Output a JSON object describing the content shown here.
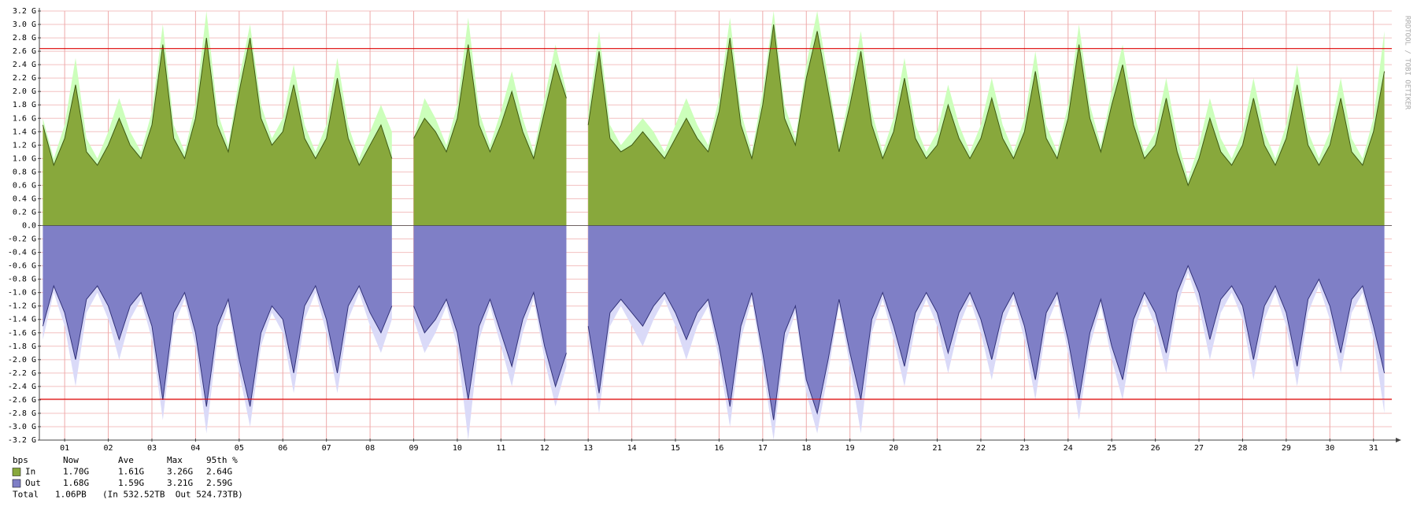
{
  "chart_data": {
    "type": "area",
    "watermark": "RRDTOOL / TOBI OETIKER",
    "xlim": [
      0.92,
      31.92
    ],
    "xticks": [
      {
        "value": 1.5,
        "label": "01"
      },
      {
        "value": 2.5,
        "label": "02"
      },
      {
        "value": 3.5,
        "label": "03"
      },
      {
        "value": 4.5,
        "label": "04"
      },
      {
        "value": 5.5,
        "label": "05"
      },
      {
        "value": 6.5,
        "label": "06"
      },
      {
        "value": 7.5,
        "label": "07"
      },
      {
        "value": 8.5,
        "label": "08"
      },
      {
        "value": 9.5,
        "label": "09"
      },
      {
        "value": 10.5,
        "label": "10"
      },
      {
        "value": 11.5,
        "label": "11"
      },
      {
        "value": 12.5,
        "label": "12"
      },
      {
        "value": 13.5,
        "label": "13"
      },
      {
        "value": 14.5,
        "label": "14"
      },
      {
        "value": 15.5,
        "label": "15"
      },
      {
        "value": 16.5,
        "label": "16"
      },
      {
        "value": 17.5,
        "label": "17"
      },
      {
        "value": 18.5,
        "label": "18"
      },
      {
        "value": 19.5,
        "label": "19"
      },
      {
        "value": 20.5,
        "label": "20"
      },
      {
        "value": 21.5,
        "label": "21"
      },
      {
        "value": 22.5,
        "label": "22"
      },
      {
        "value": 23.5,
        "label": "23"
      },
      {
        "value": 24.5,
        "label": "24"
      },
      {
        "value": 25.5,
        "label": "25"
      },
      {
        "value": 26.5,
        "label": "26"
      },
      {
        "value": 27.5,
        "label": "27"
      },
      {
        "value": 28.5,
        "label": "28"
      },
      {
        "value": 29.5,
        "label": "29"
      },
      {
        "value": 30.5,
        "label": "30"
      },
      {
        "value": 31.5,
        "label": "31"
      }
    ],
    "ylim": [
      -3.2,
      3.2
    ],
    "yticks": [
      {
        "value": 3.2,
        "label": "3.2 G"
      },
      {
        "value": 3.0,
        "label": "3.0 G"
      },
      {
        "value": 2.8,
        "label": "2.8 G"
      },
      {
        "value": 2.6,
        "label": "2.6 G"
      },
      {
        "value": 2.4,
        "label": "2.4 G"
      },
      {
        "value": 2.2,
        "label": "2.2 G"
      },
      {
        "value": 2.0,
        "label": "2.0 G"
      },
      {
        "value": 1.8,
        "label": "1.8 G"
      },
      {
        "value": 1.6,
        "label": "1.6 G"
      },
      {
        "value": 1.4,
        "label": "1.4 G"
      },
      {
        "value": 1.2,
        "label": "1.2 G"
      },
      {
        "value": 1.0,
        "label": "1.0 G"
      },
      {
        "value": 0.8,
        "label": "0.8 G"
      },
      {
        "value": 0.6,
        "label": "0.6 G"
      },
      {
        "value": 0.4,
        "label": "0.4 G"
      },
      {
        "value": 0.2,
        "label": "0.2 G"
      },
      {
        "value": 0,
        "label": "0.0"
      },
      {
        "value": -0.2,
        "label": "-0.2 G"
      },
      {
        "value": -0.4,
        "label": "-0.4 G"
      },
      {
        "value": -0.6,
        "label": "-0.6 G"
      },
      {
        "value": -0.8,
        "label": "-0.8 G"
      },
      {
        "value": -1.0,
        "label": "-1.0 G"
      },
      {
        "value": -1.2,
        "label": "-1.2 G"
      },
      {
        "value": -1.4,
        "label": "-1.4 G"
      },
      {
        "value": -1.6,
        "label": "-1.6 G"
      },
      {
        "value": -1.8,
        "label": "-1.8 G"
      },
      {
        "value": -2.0,
        "label": "-2.0 G"
      },
      {
        "value": -2.2,
        "label": "-2.2 G"
      },
      {
        "value": -2.4,
        "label": "-2.4 G"
      },
      {
        "value": -2.6,
        "label": "-2.6 G"
      },
      {
        "value": -2.8,
        "label": "-2.8 G"
      },
      {
        "value": -3.0,
        "label": "-3.0 G"
      },
      {
        "value": -3.2,
        "label": "-3.2 G"
      }
    ],
    "grid": true,
    "hrules": [
      2.64,
      -2.59
    ],
    "x": [
      1,
      1.25,
      1.5,
      1.75,
      2,
      2.25,
      2.5,
      2.75,
      3,
      3.25,
      3.5,
      3.75,
      4,
      4.25,
      4.5,
      4.75,
      5,
      5.25,
      5.5,
      5.75,
      6,
      6.25,
      6.5,
      6.75,
      7,
      7.25,
      7.5,
      7.75,
      8,
      8.25,
      8.5,
      8.75,
      9,
      9.25,
      9.5,
      9.75,
      10,
      10.25,
      10.5,
      10.75,
      11,
      11.25,
      11.5,
      11.75,
      12,
      12.25,
      12.5,
      12.75,
      13,
      13.25,
      13.5,
      13.75,
      14,
      14.25,
      14.5,
      14.75,
      15,
      15.25,
      15.5,
      15.75,
      16,
      16.25,
      16.5,
      16.75,
      17,
      17.25,
      17.5,
      17.75,
      18,
      18.25,
      18.5,
      18.75,
      19,
      19.25,
      19.5,
      19.75,
      20,
      20.25,
      20.5,
      20.75,
      21,
      21.25,
      21.5,
      21.75,
      22,
      22.25,
      22.5,
      22.75,
      23,
      23.25,
      23.5,
      23.75,
      24,
      24.25,
      24.5,
      24.75,
      25,
      25.25,
      25.5,
      25.75,
      26,
      26.25,
      26.5,
      26.75,
      27,
      27.25,
      27.5,
      27.75,
      28,
      28.25,
      28.5,
      28.75,
      29,
      29.25,
      29.5,
      29.75,
      30,
      30.25,
      30.5,
      30.75,
      31,
      31.25,
      31.5,
      31.75
    ],
    "series": [
      {
        "name": "In",
        "color": "#88a83c",
        "line_color": "#3f5a14",
        "max_color": "#ccffbb",
        "values": [
          1.5,
          0.9,
          1.3,
          2.1,
          1.1,
          0.9,
          1.2,
          1.6,
          1.2,
          1.0,
          1.5,
          2.7,
          1.3,
          1.0,
          1.6,
          2.8,
          1.5,
          1.1,
          2.0,
          2.8,
          1.6,
          1.2,
          1.4,
          2.1,
          1.3,
          1.0,
          1.3,
          2.2,
          1.3,
          0.9,
          1.2,
          1.5,
          1.0,
          null,
          1.3,
          1.6,
          1.4,
          1.1,
          1.6,
          2.7,
          1.5,
          1.1,
          1.5,
          2.0,
          1.4,
          1.0,
          1.7,
          2.4,
          1.9,
          null,
          1.5,
          2.6,
          1.3,
          1.1,
          1.2,
          1.4,
          1.2,
          1.0,
          1.3,
          1.6,
          1.3,
          1.1,
          1.7,
          2.8,
          1.5,
          1.0,
          1.8,
          3.0,
          1.6,
          1.2,
          2.2,
          2.9,
          2.0,
          1.1,
          1.8,
          2.6,
          1.5,
          1.0,
          1.4,
          2.2,
          1.3,
          1.0,
          1.2,
          1.8,
          1.3,
          1.0,
          1.3,
          1.9,
          1.3,
          1.0,
          1.4,
          2.3,
          1.3,
          1.0,
          1.6,
          2.7,
          1.6,
          1.1,
          1.8,
          2.4,
          1.5,
          1.0,
          1.2,
          1.9,
          1.1,
          0.6,
          1.0,
          1.6,
          1.1,
          0.9,
          1.2,
          1.9,
          1.2,
          0.9,
          1.3,
          2.1,
          1.2,
          0.9,
          1.2,
          1.9,
          1.1,
          0.9,
          1.4,
          2.3
        ],
        "max_values": [
          1.6,
          1.0,
          1.5,
          2.5,
          1.3,
          1.0,
          1.4,
          1.9,
          1.4,
          1.1,
          1.7,
          3.0,
          1.5,
          1.1,
          1.8,
          3.2,
          1.7,
          1.2,
          2.2,
          3.0,
          1.8,
          1.3,
          1.6,
          2.4,
          1.5,
          1.1,
          1.5,
          2.5,
          1.5,
          1.0,
          1.4,
          1.8,
          1.4,
          null,
          1.3,
          1.9,
          1.6,
          1.2,
          1.8,
          3.1,
          1.7,
          1.2,
          1.7,
          2.3,
          1.6,
          1.1,
          1.9,
          2.7,
          2.0,
          null,
          1.7,
          2.9,
          1.5,
          1.2,
          1.4,
          1.6,
          1.4,
          1.1,
          1.5,
          1.9,
          1.5,
          1.2,
          1.9,
          3.1,
          1.7,
          1.1,
          2.0,
          3.2,
          1.8,
          1.3,
          2.4,
          3.2,
          2.2,
          1.2,
          2.0,
          2.9,
          1.7,
          1.1,
          1.6,
          2.5,
          1.5,
          1.1,
          1.4,
          2.1,
          1.5,
          1.1,
          1.5,
          2.2,
          1.5,
          1.1,
          1.6,
          2.6,
          1.5,
          1.1,
          1.8,
          3.0,
          1.8,
          1.2,
          2.0,
          2.7,
          1.7,
          1.1,
          1.4,
          2.2,
          1.3,
          0.7,
          1.2,
          1.9,
          1.3,
          1.0,
          1.4,
          2.2,
          1.4,
          1.0,
          1.5,
          2.4,
          1.4,
          1.0,
          1.4,
          2.2,
          1.3,
          1.0,
          1.6,
          2.9
        ]
      },
      {
        "name": "Out",
        "color": "#7f7fc6",
        "line_color": "#33337a",
        "max_color": "#dadaf8",
        "values": [
          -1.5,
          -0.9,
          -1.3,
          -2.0,
          -1.1,
          -0.9,
          -1.2,
          -1.7,
          -1.2,
          -1.0,
          -1.5,
          -2.6,
          -1.3,
          -1.0,
          -1.6,
          -2.7,
          -1.5,
          -1.1,
          -2.0,
          -2.7,
          -1.6,
          -1.2,
          -1.4,
          -2.2,
          -1.2,
          -0.9,
          -1.4,
          -2.2,
          -1.2,
          -0.9,
          -1.3,
          -1.6,
          -1.2,
          null,
          -1.2,
          -1.6,
          -1.4,
          -1.1,
          -1.6,
          -2.6,
          -1.5,
          -1.1,
          -1.6,
          -2.1,
          -1.4,
          -1.0,
          -1.8,
          -2.4,
          -1.9,
          null,
          -1.5,
          -2.5,
          -1.3,
          -1.1,
          -1.3,
          -1.5,
          -1.2,
          -1.0,
          -1.3,
          -1.7,
          -1.3,
          -1.1,
          -1.8,
          -2.7,
          -1.5,
          -1.0,
          -1.9,
          -2.9,
          -1.6,
          -1.2,
          -2.3,
          -2.8,
          -2.0,
          -1.1,
          -1.9,
          -2.6,
          -1.4,
          -1.0,
          -1.5,
          -2.1,
          -1.3,
          -1.0,
          -1.3,
          -1.9,
          -1.3,
          -1.0,
          -1.4,
          -2.0,
          -1.3,
          -1.0,
          -1.5,
          -2.3,
          -1.3,
          -1.0,
          -1.7,
          -2.6,
          -1.6,
          -1.1,
          -1.8,
          -2.3,
          -1.4,
          -1.0,
          -1.3,
          -1.9,
          -1.0,
          -0.6,
          -1.0,
          -1.7,
          -1.1,
          -0.9,
          -1.2,
          -2.0,
          -1.2,
          -0.9,
          -1.3,
          -2.1,
          -1.1,
          -0.8,
          -1.2,
          -1.9,
          -1.1,
          -0.9,
          -1.5,
          -2.2
        ],
        "max_values": [
          -1.7,
          -1.0,
          -1.5,
          -2.4,
          -1.3,
          -1.0,
          -1.4,
          -2.0,
          -1.4,
          -1.1,
          -1.7,
          -2.9,
          -1.5,
          -1.1,
          -1.8,
          -3.1,
          -1.7,
          -1.2,
          -2.2,
          -3.0,
          -1.8,
          -1.3,
          -1.6,
          -2.5,
          -1.4,
          -1.0,
          -1.6,
          -2.5,
          -1.4,
          -1.0,
          -1.5,
          -1.9,
          -1.4,
          null,
          -1.4,
          -1.9,
          -1.6,
          -1.2,
          -1.8,
          -3.2,
          -1.7,
          -1.2,
          -1.8,
          -2.4,
          -1.6,
          -1.1,
          -2.0,
          -2.7,
          -2.1,
          null,
          -1.7,
          -2.8,
          -1.5,
          -1.2,
          -1.5,
          -1.8,
          -1.4,
          -1.1,
          -1.5,
          -2.0,
          -1.5,
          -1.2,
          -2.0,
          -3.0,
          -1.7,
          -1.1,
          -2.1,
          -3.2,
          -1.8,
          -1.3,
          -2.5,
          -3.1,
          -2.2,
          -1.2,
          -2.1,
          -3.1,
          -1.6,
          -1.1,
          -1.7,
          -2.4,
          -1.5,
          -1.1,
          -1.5,
          -2.2,
          -1.5,
          -1.1,
          -1.6,
          -2.3,
          -1.5,
          -1.1,
          -1.7,
          -2.6,
          -1.5,
          -1.1,
          -1.9,
          -2.9,
          -1.8,
          -1.2,
          -2.0,
          -2.6,
          -1.6,
          -1.1,
          -1.5,
          -2.2,
          -1.2,
          -0.7,
          -1.2,
          -2.0,
          -1.3,
          -1.0,
          -1.4,
          -2.3,
          -1.4,
          -1.0,
          -1.5,
          -2.4,
          -1.3,
          -0.9,
          -1.4,
          -2.2,
          -1.3,
          -1.0,
          -1.7,
          -2.8
        ]
      }
    ],
    "stats": {
      "columns": [
        "bps",
        "Now",
        "Ave",
        "Max",
        "95th %"
      ],
      "rows": [
        [
          "1.70G",
          "1.61G",
          "3.26G",
          "2.64G"
        ],
        [
          "1.68G",
          "1.59G",
          "3.21G",
          "2.59G"
        ]
      ]
    },
    "total": {
      "label": "Total",
      "value": "1.06PB",
      "detail": "(In 532.52TB  Out 524.73TB)"
    }
  }
}
